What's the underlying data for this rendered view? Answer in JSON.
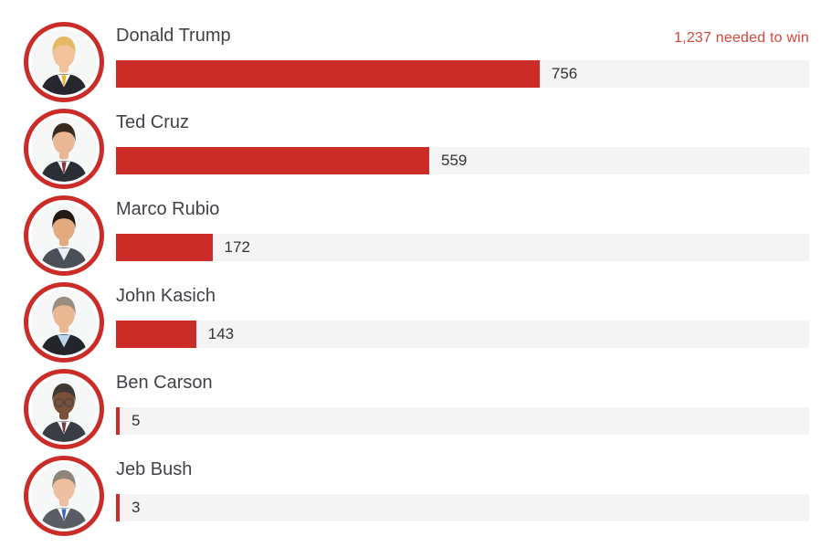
{
  "colors": {
    "bar": "#cb2c28",
    "track": "#f4f4f4",
    "needed_text": "#d9453c",
    "name_text": "#3f4247",
    "value_text": "#333333",
    "avatar_ring": "#cb2c28"
  },
  "chart_data": {
    "type": "bar",
    "orientation": "horizontal",
    "xmax": 1237,
    "needed_to_win_value": 1237,
    "needed_to_win_label": "1,237 needed to win",
    "legend": "none",
    "grid": "off",
    "categories": [
      "Donald Trump",
      "Ted Cruz",
      "Marco Rubio",
      "John Kasich",
      "Ben Carson",
      "Jeb Bush"
    ],
    "values": [
      756,
      559,
      172,
      143,
      5,
      3
    ],
    "candidates": [
      {
        "name": "Donald Trump",
        "delegates": 756,
        "avatar": {
          "icon": "trump-portrait",
          "skin": "#f1c29b",
          "hair": "#e5b964",
          "suit": "#26262e",
          "shirt": "#ffffff",
          "tie": "#f2b32a",
          "glasses": false
        }
      },
      {
        "name": "Ted Cruz",
        "delegates": 559,
        "avatar": {
          "icon": "cruz-portrait",
          "skin": "#eab794",
          "hair": "#39291f",
          "suit": "#2b2e35",
          "shirt": "#ffffff",
          "tie": "#8e2f3a",
          "glasses": false
        }
      },
      {
        "name": "Marco Rubio",
        "delegates": 172,
        "avatar": {
          "icon": "rubio-portrait",
          "skin": "#e3a97f",
          "hair": "#241a13",
          "suit": "#4b4f58",
          "shirt": "#e9f0f5",
          "tie": "",
          "glasses": false
        }
      },
      {
        "name": "John Kasich",
        "delegates": 143,
        "avatar": {
          "icon": "kasich-portrait",
          "skin": "#e9b893",
          "hair": "#9b8d80",
          "suit": "#23252b",
          "shirt": "#bcd6ea",
          "tie": "",
          "glasses": false
        }
      },
      {
        "name": "Ben Carson",
        "delegates": 5,
        "avatar": {
          "icon": "carson-portrait",
          "skin": "#7a5038",
          "hair": "#3d3935",
          "suit": "#3a3d44",
          "shirt": "#ffffff",
          "tie": "#7a3b44",
          "glasses": true
        }
      },
      {
        "name": "Jeb Bush",
        "delegates": 3,
        "avatar": {
          "icon": "bush-portrait",
          "skin": "#eebfa0",
          "hair": "#8f8578",
          "suit": "#5a5d63",
          "shirt": "#ffffff",
          "tie": "#3a6bbf",
          "glasses": false
        }
      }
    ]
  }
}
